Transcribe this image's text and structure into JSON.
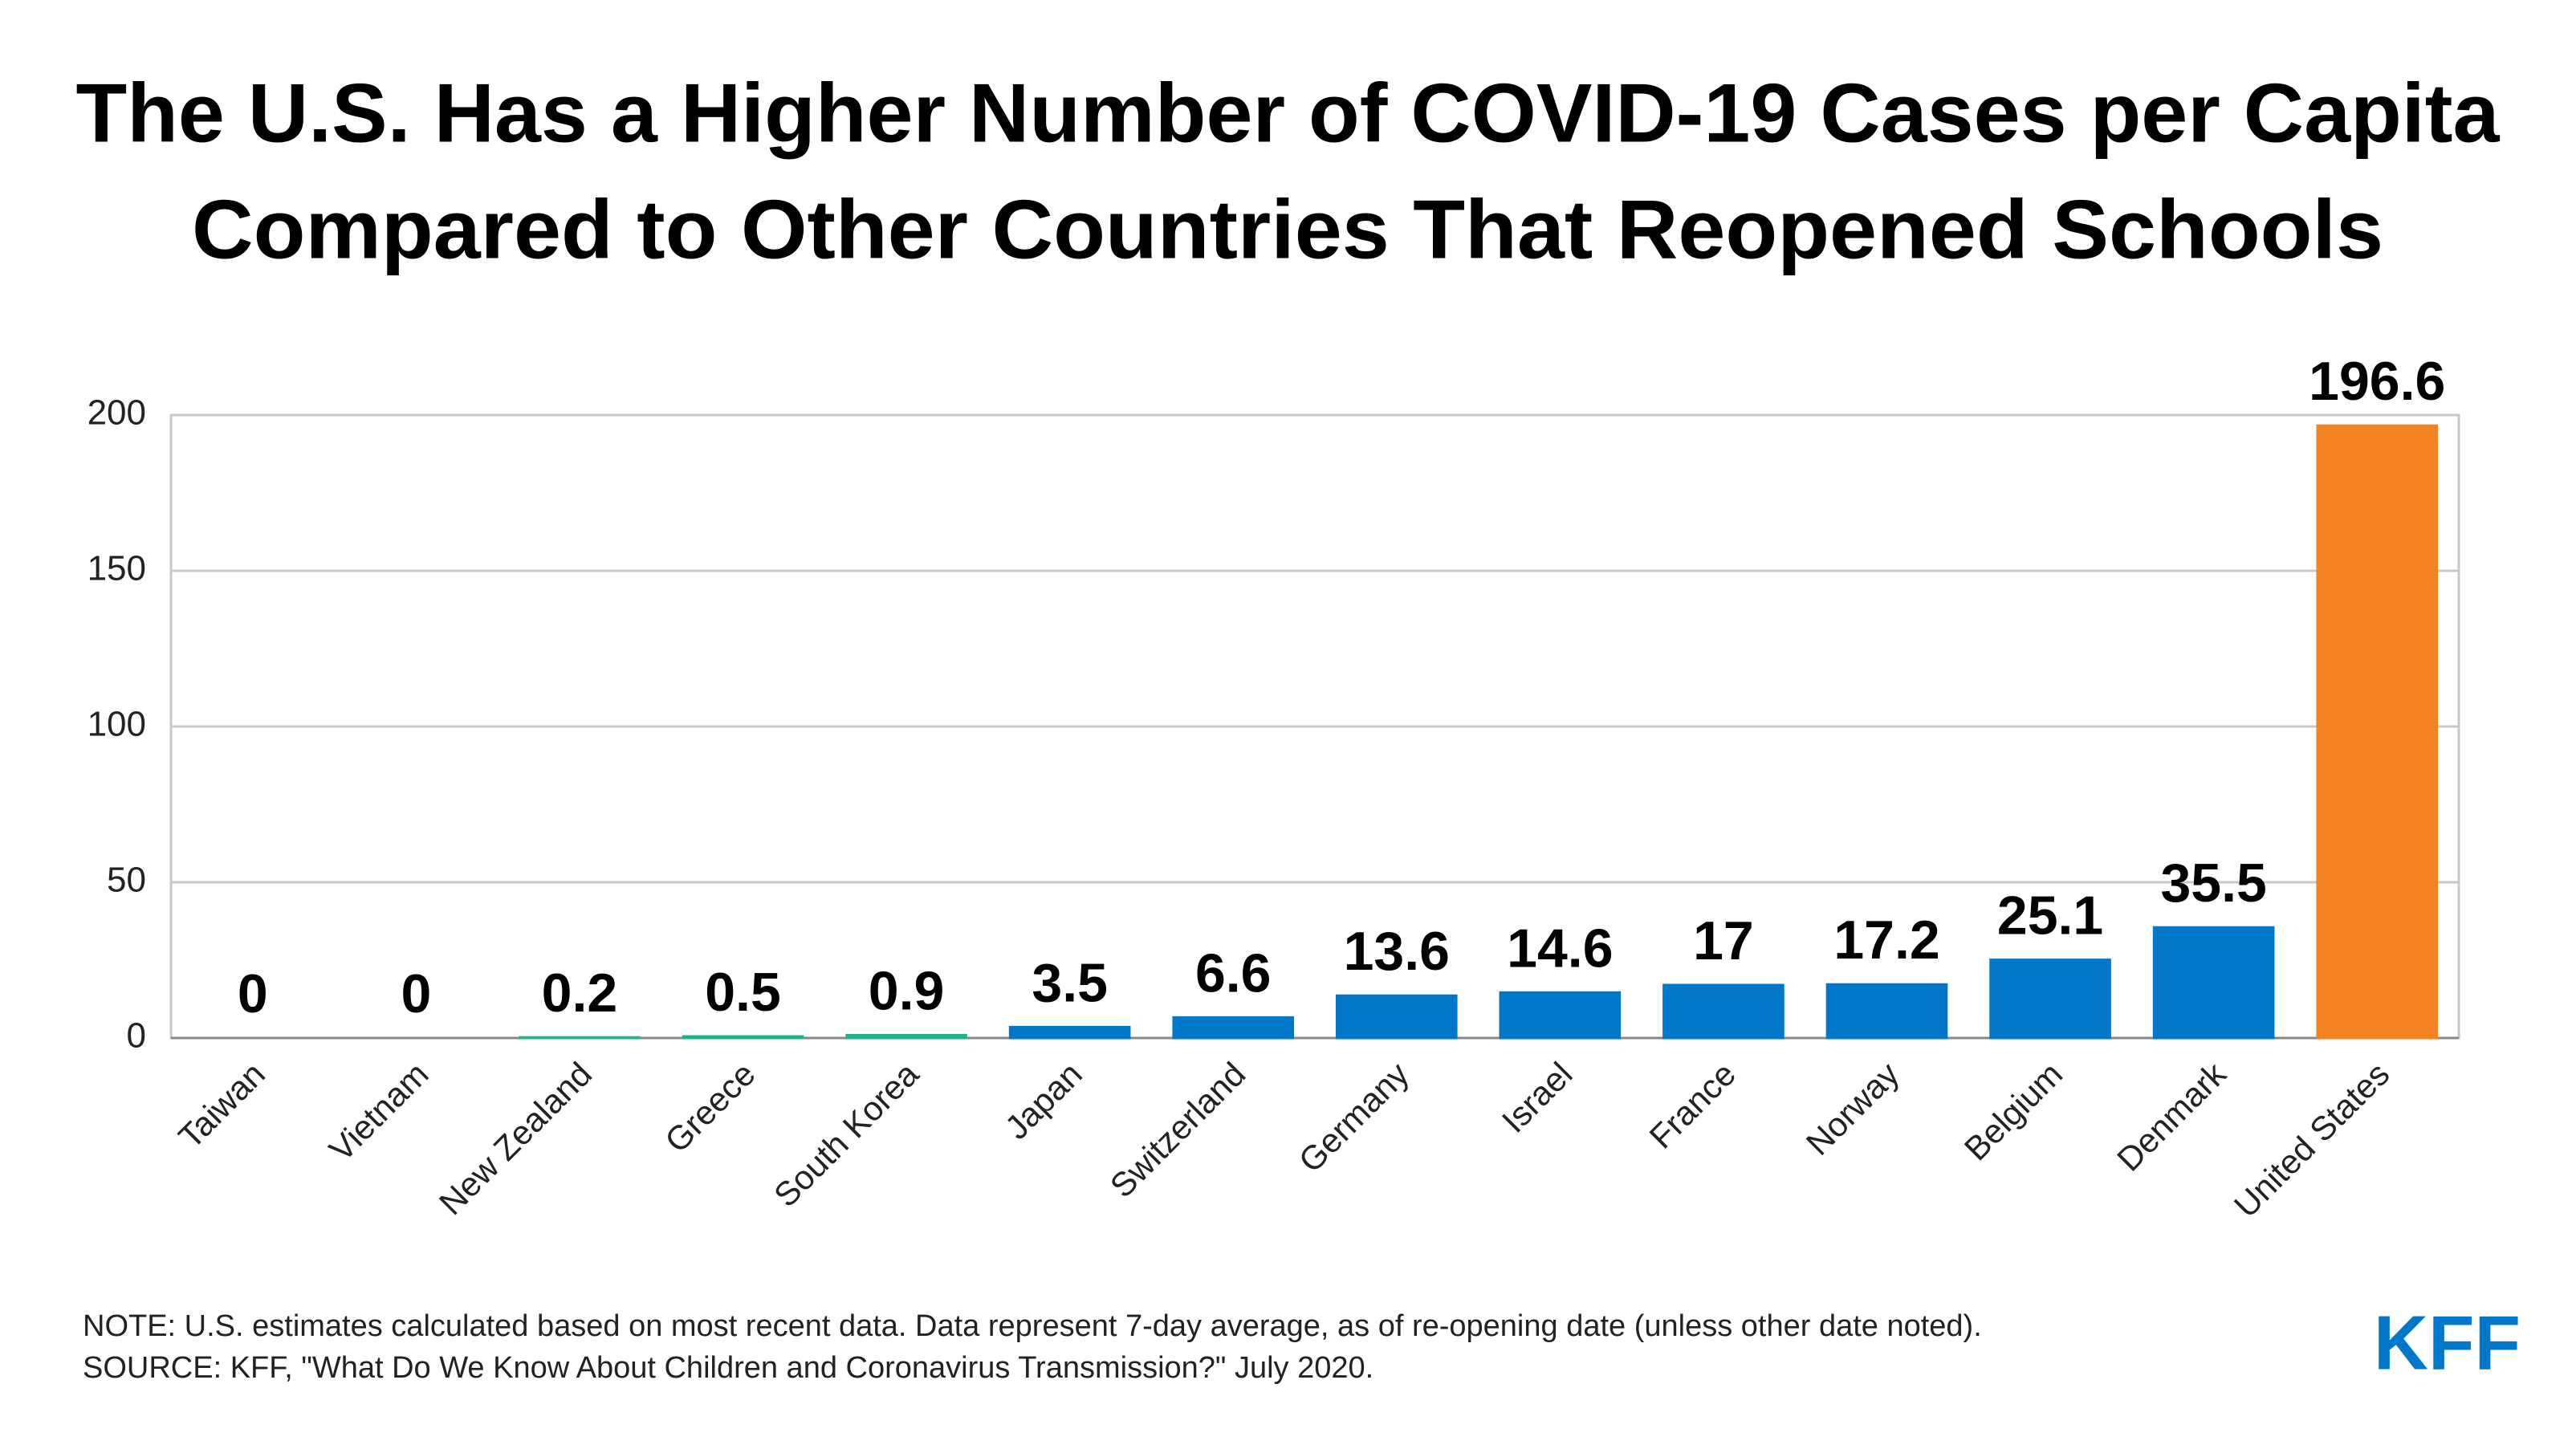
{
  "chart_data": {
    "type": "bar",
    "title": [
      "The U.S. Has a Higher Number of COVID-19 Cases per Capita",
      "Compared to Other Countries That Reopened Schools"
    ],
    "categories": [
      "Taiwan",
      "Vietnam",
      "New Zealand",
      "Greece",
      "South Korea",
      "Japan",
      "Switzerland",
      "Germany",
      "Israel",
      "France",
      "Norway",
      "Belgium",
      "Denmark",
      "United States"
    ],
    "values": [
      0,
      0,
      0.2,
      0.5,
      0.9,
      3.5,
      6.6,
      13.6,
      14.6,
      17,
      17.2,
      25.1,
      35.5,
      196.6
    ],
    "colors": [
      "#1db488",
      "#1db488",
      "#1db488",
      "#1db488",
      "#1db488",
      "#0077c8",
      "#0077c8",
      "#0077c8",
      "#0077c8",
      "#0077c8",
      "#0077c8",
      "#0077c8",
      "#0077c8",
      "#f58220"
    ],
    "ylim": [
      0,
      200
    ],
    "yticks": [
      0,
      50,
      100,
      150,
      200
    ],
    "grid": true,
    "notes": [
      "NOTE: U.S. estimates calculated based on most recent data. Data represent 7-day average, as of re-opening date (unless other date noted).",
      "SOURCE: KFF, \"What Do We Know About Children and Coronavirus Transmission?\" July 2020."
    ],
    "logo": "KFF"
  }
}
